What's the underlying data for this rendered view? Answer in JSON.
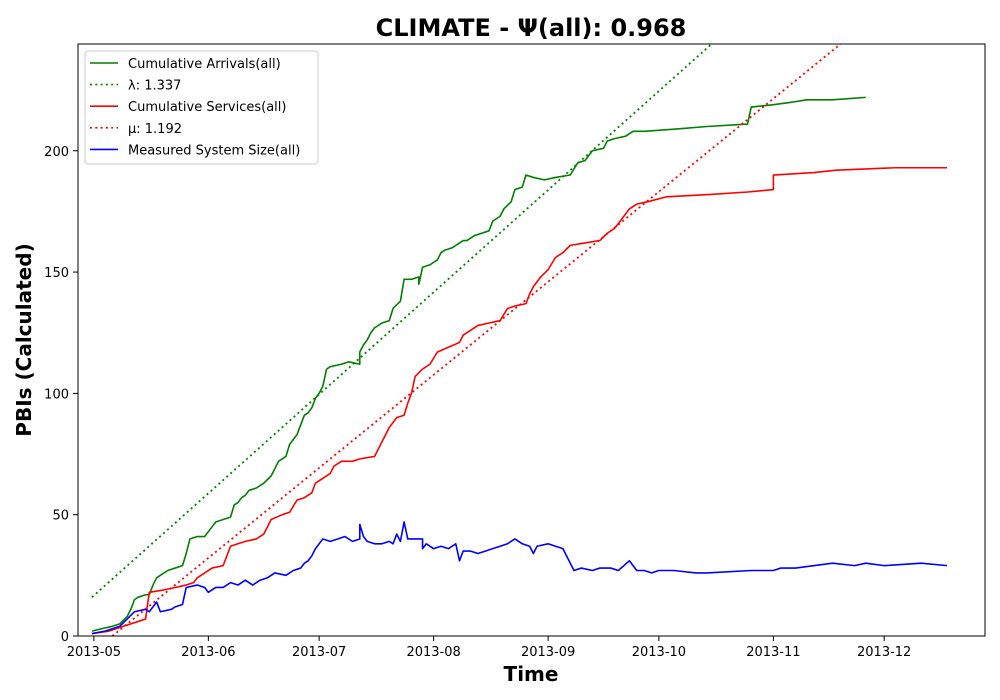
{
  "chart_data": {
    "type": "line",
    "title": "CLIMATE -  Ψ(all): 0.968",
    "xlabel": "Time",
    "ylabel": "PBIs (Calculated)",
    "xlim": [
      -4.3,
      241.3
    ],
    "ylim": [
      0,
      244
    ],
    "x_unit": "days since 2013-05-01",
    "x_ticks": [
      {
        "x": 0,
        "label": "2013-05"
      },
      {
        "x": 31,
        "label": "2013-06"
      },
      {
        "x": 61,
        "label": "2013-07"
      },
      {
        "x": 92,
        "label": "2013-08"
      },
      {
        "x": 123,
        "label": "2013-09"
      },
      {
        "x": 153,
        "label": "2013-10"
      },
      {
        "x": 184,
        "label": "2013-11"
      },
      {
        "x": 214,
        "label": "2013-12"
      }
    ],
    "y_ticks": [
      0,
      50,
      100,
      150,
      200
    ],
    "grid": false,
    "legend_position": "top-left",
    "series": [
      {
        "name": "Cumulative Arrivals(all)",
        "color": "#008000",
        "style": "solid",
        "points": [
          [
            -0.5,
            2
          ],
          [
            2,
            3
          ],
          [
            5,
            4
          ],
          [
            7,
            5
          ],
          [
            9,
            8
          ],
          [
            10,
            11
          ],
          [
            11,
            15
          ],
          [
            12,
            16
          ],
          [
            14,
            17
          ],
          [
            15,
            17
          ],
          [
            16,
            21
          ],
          [
            17,
            24
          ],
          [
            18,
            25
          ],
          [
            20,
            27
          ],
          [
            22,
            28
          ],
          [
            24,
            29
          ],
          [
            25,
            34
          ],
          [
            26,
            40
          ],
          [
            28,
            41
          ],
          [
            30,
            41
          ],
          [
            32,
            45
          ],
          [
            33,
            47
          ],
          [
            35,
            48
          ],
          [
            37,
            49
          ],
          [
            38,
            54
          ],
          [
            39,
            55
          ],
          [
            40,
            57
          ],
          [
            41,
            58
          ],
          [
            42,
            60
          ],
          [
            44,
            61
          ],
          [
            46,
            63
          ],
          [
            48,
            66
          ],
          [
            49,
            69
          ],
          [
            50,
            72
          ],
          [
            52,
            74
          ],
          [
            53,
            79
          ],
          [
            54,
            81
          ],
          [
            55,
            83
          ],
          [
            56,
            87
          ],
          [
            57,
            91
          ],
          [
            58,
            92
          ],
          [
            59,
            94
          ],
          [
            60,
            98
          ],
          [
            61,
            100
          ],
          [
            62,
            103
          ],
          [
            63,
            110
          ],
          [
            64,
            111
          ],
          [
            67,
            112
          ],
          [
            69,
            113
          ],
          [
            72,
            112
          ],
          [
            72,
            117
          ],
          [
            73,
            120
          ],
          [
            74,
            122
          ],
          [
            75,
            125
          ],
          [
            76,
            127
          ],
          [
            78,
            129
          ],
          [
            80,
            130
          ],
          [
            81,
            135
          ],
          [
            83,
            138
          ],
          [
            84,
            147
          ],
          [
            86,
            147
          ],
          [
            88,
            148
          ],
          [
            88,
            145
          ],
          [
            89,
            152
          ],
          [
            91,
            153
          ],
          [
            92,
            154
          ],
          [
            93,
            155
          ],
          [
            94,
            158
          ],
          [
            95,
            159
          ],
          [
            97,
            160
          ],
          [
            98,
            161
          ],
          [
            100,
            163
          ],
          [
            101,
            163
          ],
          [
            103,
            165
          ],
          [
            105,
            166
          ],
          [
            107,
            167
          ],
          [
            108,
            171
          ],
          [
            110,
            173
          ],
          [
            111,
            176
          ],
          [
            113,
            179
          ],
          [
            114,
            184
          ],
          [
            116,
            185
          ],
          [
            117,
            190
          ],
          [
            119,
            189
          ],
          [
            122,
            188
          ],
          [
            125,
            189
          ],
          [
            129,
            190
          ],
          [
            131,
            195
          ],
          [
            133,
            196
          ],
          [
            135,
            200
          ],
          [
            138,
            201
          ],
          [
            139,
            204
          ],
          [
            141,
            205
          ],
          [
            144,
            206
          ],
          [
            146,
            208
          ],
          [
            149,
            208
          ],
          [
            158,
            209
          ],
          [
            166,
            210
          ],
          [
            177,
            211
          ],
          [
            178,
            218
          ],
          [
            184,
            219
          ],
          [
            189,
            220
          ],
          [
            193,
            221
          ],
          [
            200,
            221
          ],
          [
            209,
            222
          ]
        ]
      },
      {
        "name": "λ: 1.337",
        "color": "#008000",
        "style": "dotted",
        "points": [
          [
            -0.5,
            16
          ],
          [
            168,
            245
          ]
        ]
      },
      {
        "name": "Cumulative Services(all)",
        "color": "#ff0000",
        "style": "solid",
        "points": [
          [
            -0.5,
            1
          ],
          [
            4,
            2
          ],
          [
            8,
            4
          ],
          [
            10,
            5
          ],
          [
            12,
            6
          ],
          [
            14,
            7
          ],
          [
            15,
            18
          ],
          [
            19,
            19
          ],
          [
            22,
            20
          ],
          [
            25,
            21
          ],
          [
            27,
            22
          ],
          [
            28,
            24
          ],
          [
            30,
            26
          ],
          [
            32,
            28
          ],
          [
            35,
            29
          ],
          [
            37,
            37
          ],
          [
            39,
            38
          ],
          [
            41,
            39
          ],
          [
            44,
            40
          ],
          [
            46,
            42
          ],
          [
            48,
            48
          ],
          [
            51,
            50
          ],
          [
            53,
            51
          ],
          [
            55,
            56
          ],
          [
            57,
            57
          ],
          [
            59,
            59
          ],
          [
            60,
            63
          ],
          [
            62,
            65
          ],
          [
            64,
            67
          ],
          [
            65,
            70
          ],
          [
            67,
            72
          ],
          [
            70,
            72
          ],
          [
            72,
            73
          ],
          [
            76,
            74
          ],
          [
            78,
            80
          ],
          [
            79,
            83
          ],
          [
            80,
            86
          ],
          [
            82,
            90
          ],
          [
            84,
            91
          ],
          [
            85,
            96
          ],
          [
            86,
            100
          ],
          [
            87,
            107
          ],
          [
            89,
            110
          ],
          [
            91,
            112
          ],
          [
            93,
            117
          ],
          [
            96,
            119
          ],
          [
            99,
            121
          ],
          [
            100,
            124
          ],
          [
            102,
            126
          ],
          [
            104,
            128
          ],
          [
            107,
            129
          ],
          [
            110,
            130
          ],
          [
            112,
            135
          ],
          [
            114,
            136
          ],
          [
            117,
            137
          ],
          [
            118,
            141
          ],
          [
            119,
            144
          ],
          [
            121,
            148
          ],
          [
            123,
            151
          ],
          [
            125,
            156
          ],
          [
            127,
            158
          ],
          [
            129,
            161
          ],
          [
            133,
            162
          ],
          [
            137,
            163
          ],
          [
            139,
            166
          ],
          [
            141,
            168
          ],
          [
            143,
            172
          ],
          [
            145,
            176
          ],
          [
            147,
            178
          ],
          [
            150,
            179
          ],
          [
            155,
            181
          ],
          [
            167,
            182
          ],
          [
            177,
            183
          ],
          [
            184,
            184
          ],
          [
            184,
            190
          ],
          [
            195,
            191
          ],
          [
            201,
            192
          ],
          [
            217,
            193
          ],
          [
            231,
            193
          ]
        ]
      },
      {
        "name": "μ: 1.192",
        "color": "#ff0000",
        "style": "dotted",
        "points": [
          [
            5,
            0
          ],
          [
            203,
            245
          ]
        ]
      },
      {
        "name": "Measured System Size(all)",
        "color": "#0000ff",
        "style": "solid",
        "points": [
          [
            -0.5,
            1
          ],
          [
            3,
            2
          ],
          [
            5,
            3
          ],
          [
            7,
            4
          ],
          [
            9,
            7
          ],
          [
            11,
            10
          ],
          [
            14,
            11
          ],
          [
            15,
            10
          ],
          [
            16,
            12
          ],
          [
            17,
            14
          ],
          [
            18,
            10
          ],
          [
            21,
            11
          ],
          [
            22,
            12
          ],
          [
            24,
            13
          ],
          [
            25,
            20
          ],
          [
            28,
            21
          ],
          [
            30,
            20
          ],
          [
            31,
            18
          ],
          [
            33,
            20
          ],
          [
            35,
            20
          ],
          [
            37,
            22
          ],
          [
            39,
            21
          ],
          [
            41,
            23
          ],
          [
            43,
            21
          ],
          [
            45,
            23
          ],
          [
            47,
            24
          ],
          [
            49,
            26
          ],
          [
            52,
            25
          ],
          [
            54,
            27
          ],
          [
            56,
            28
          ],
          [
            57,
            30
          ],
          [
            58,
            31
          ],
          [
            59,
            33
          ],
          [
            60,
            36
          ],
          [
            62,
            40
          ],
          [
            64,
            39
          ],
          [
            66,
            40
          ],
          [
            68,
            41
          ],
          [
            70,
            39
          ],
          [
            72,
            40
          ],
          [
            72,
            46
          ],
          [
            73,
            41
          ],
          [
            74,
            39
          ],
          [
            76,
            38
          ],
          [
            78,
            38
          ],
          [
            80,
            39
          ],
          [
            81,
            38
          ],
          [
            82,
            42
          ],
          [
            83,
            39
          ],
          [
            84,
            47
          ],
          [
            85,
            40
          ],
          [
            87,
            40
          ],
          [
            89,
            40
          ],
          [
            89,
            36
          ],
          [
            90,
            38
          ],
          [
            91,
            37
          ],
          [
            92,
            36
          ],
          [
            94,
            37
          ],
          [
            96,
            36
          ],
          [
            98,
            38
          ],
          [
            99,
            31
          ],
          [
            100,
            35
          ],
          [
            102,
            35
          ],
          [
            104,
            34
          ],
          [
            106,
            35
          ],
          [
            108,
            36
          ],
          [
            110,
            37
          ],
          [
            112,
            38
          ],
          [
            114,
            40
          ],
          [
            116,
            38
          ],
          [
            118,
            37
          ],
          [
            119,
            34
          ],
          [
            120,
            37
          ],
          [
            123,
            38
          ],
          [
            125,
            37
          ],
          [
            127,
            36
          ],
          [
            130,
            27
          ],
          [
            132,
            28
          ],
          [
            135,
            27
          ],
          [
            137,
            28
          ],
          [
            140,
            28
          ],
          [
            142,
            27
          ],
          [
            145,
            31
          ],
          [
            147,
            27
          ],
          [
            149,
            27
          ],
          [
            151,
            26
          ],
          [
            153,
            27
          ],
          [
            157,
            27
          ],
          [
            163,
            26
          ],
          [
            166,
            26
          ],
          [
            178,
            27
          ],
          [
            184,
            27
          ],
          [
            186,
            28
          ],
          [
            190,
            28
          ],
          [
            200,
            30
          ],
          [
            206,
            29
          ],
          [
            209,
            30
          ],
          [
            214,
            29
          ],
          [
            224,
            30
          ],
          [
            231,
            29
          ]
        ]
      }
    ]
  }
}
